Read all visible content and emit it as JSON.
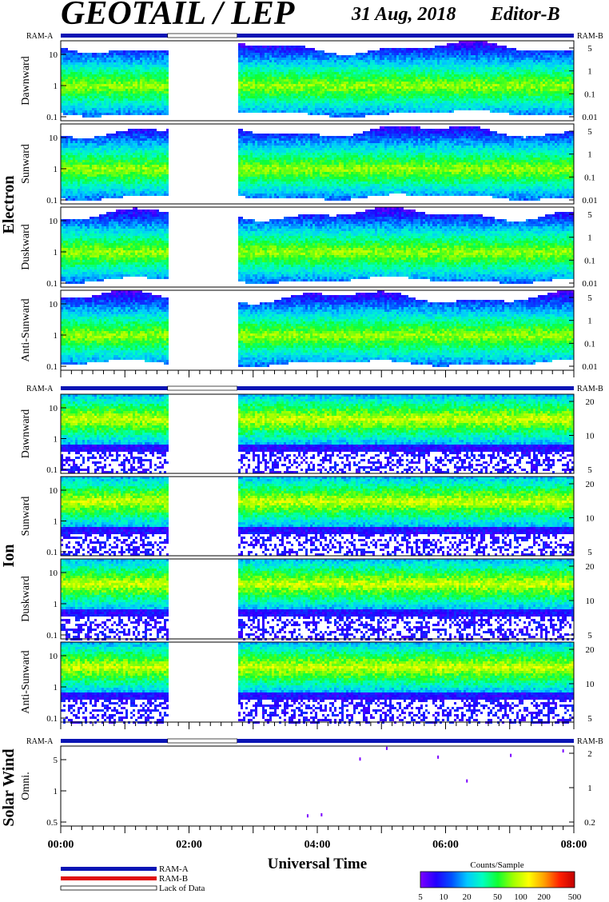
{
  "header": {
    "instrument": "GEOTAIL / LEP",
    "date": "31 Aug, 2018",
    "editor": "Editor-B"
  },
  "colors": {
    "ram_a": "#0a14b4",
    "ram_b": "#e01010",
    "scale": [
      "#7a00ff",
      "#2200ff",
      "#0050ff",
      "#00c8ff",
      "#00ffc0",
      "#10ff30",
      "#a0ff00",
      "#ffff00",
      "#ffa000",
      "#ff2000",
      "#c00000"
    ]
  },
  "labels": {
    "ram_a": "RAM-A",
    "ram_b": "RAM-B",
    "lack_of_data": "Lack of Data",
    "counts_per_sample": "Counts/Sample",
    "universal_time": "Universal Time"
  },
  "groups": {
    "electron": "Electron",
    "ion": "Ion",
    "solar_wind": "Solar Wind"
  },
  "chart_data": {
    "type": "heatmap",
    "x_axis": {
      "label": "Universal Time",
      "range": [
        "00:00",
        "08:00"
      ],
      "tick_labels": [
        "00:00",
        "02:00",
        "04:00",
        "06:00",
        "08:00"
      ]
    },
    "ram_bar": [
      {
        "start": "00:00",
        "end": "01:40",
        "state": "RAM-A"
      },
      {
        "start": "01:40",
        "end": "02:45",
        "state": "Lack of Data"
      },
      {
        "start": "02:45",
        "end": "08:00",
        "state": "RAM-A"
      }
    ],
    "data_gap": {
      "start": "01:40",
      "end": "02:45"
    },
    "panels": [
      {
        "group": "Electron",
        "name": "Dawnward",
        "left_ticks": [
          "0.1",
          "1",
          "10"
        ],
        "right_ticks": [
          "0.01",
          "0.1",
          "1",
          "5"
        ]
      },
      {
        "group": "Electron",
        "name": "Sunward",
        "left_ticks": [
          "0.1",
          "1",
          "10"
        ],
        "right_ticks": [
          "0.01",
          "0.1",
          "1",
          "5"
        ]
      },
      {
        "group": "Electron",
        "name": "Duskward",
        "left_ticks": [
          "0.1",
          "1",
          "10"
        ],
        "right_ticks": [
          "0.01",
          "0.1",
          "1",
          "5"
        ]
      },
      {
        "group": "Electron",
        "name": "Anti-Sunward",
        "left_ticks": [
          "0.1",
          "1",
          "10"
        ],
        "right_ticks": [
          "0.01",
          "0.1",
          "1",
          "5"
        ]
      },
      {
        "group": "Ion",
        "name": "Dawnward",
        "left_ticks": [
          "0.1",
          "1",
          "10"
        ],
        "right_ticks": [
          "5",
          "10",
          "20"
        ]
      },
      {
        "group": "Ion",
        "name": "Sunward",
        "left_ticks": [
          "0.1",
          "1",
          "10"
        ],
        "right_ticks": [
          "5",
          "10",
          "20"
        ]
      },
      {
        "group": "Ion",
        "name": "Duskward",
        "left_ticks": [
          "0.1",
          "1",
          "10"
        ],
        "right_ticks": [
          "5",
          "10",
          "20"
        ]
      },
      {
        "group": "Ion",
        "name": "Anti-Sunward",
        "left_ticks": [
          "0.1",
          "1",
          "10"
        ],
        "right_ticks": [
          "5",
          "10",
          "20"
        ]
      },
      {
        "group": "Solar Wind",
        "name": "Omni.",
        "left_ticks": [
          "0.5",
          "1",
          "5"
        ],
        "right_ticks": [
          "0.2",
          "1",
          "2"
        ]
      }
    ],
    "solar_wind_points": [
      {
        "t": "03:51",
        "y": 0.4
      },
      {
        "t": "04:04",
        "y": 0.42
      },
      {
        "t": "04:40",
        "y": 5.5
      },
      {
        "t": "05:05",
        "y": 9
      },
      {
        "t": "05:53",
        "y": 6
      },
      {
        "t": "06:20",
        "y": 2
      },
      {
        "t": "07:01",
        "y": 6.5
      },
      {
        "t": "07:50",
        "y": 8
      }
    ],
    "colorbar": {
      "label": "Counts/Sample",
      "scale": "log",
      "range": [
        5,
        500
      ],
      "tick_labels": [
        "5",
        "10",
        "20",
        "50",
        "100",
        "200",
        "500"
      ]
    }
  }
}
